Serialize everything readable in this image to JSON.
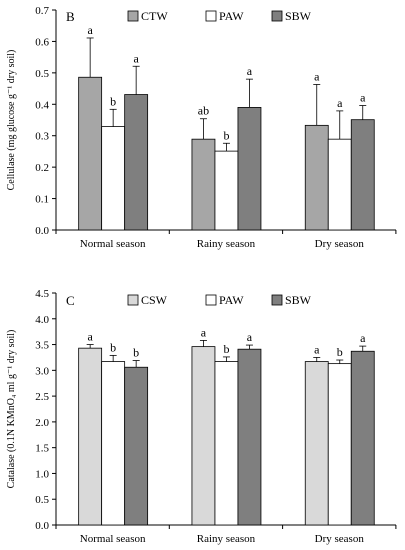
{
  "chart_data": [
    {
      "type": "bar",
      "panel_label": "B",
      "ylabel": "Cellulase (mg glucose g⁻¹ dry soil)",
      "ylim": [
        0,
        0.7
      ],
      "yticks": [
        "0.0",
        "0.1",
        "0.2",
        "0.3",
        "0.4",
        "0.5",
        "0.6",
        "0.7"
      ],
      "categories": [
        "Normal season",
        "Rainy season",
        "Dry season"
      ],
      "legend_position": "top",
      "grid": false,
      "series": [
        {
          "name": "CTW",
          "color": "#a6a6a6",
          "values": [
            0.486,
            0.289,
            0.333
          ],
          "errors": [
            0.125,
            0.065,
            0.13
          ],
          "labels": [
            "a",
            "ab",
            "a"
          ]
        },
        {
          "name": "PAW",
          "color": "#ffffff",
          "values": [
            0.329,
            0.251,
            0.289
          ],
          "errors": [
            0.055,
            0.025,
            0.09
          ],
          "labels": [
            "b",
            "b",
            "a"
          ]
        },
        {
          "name": "SBW",
          "color": "#7f7f7f",
          "values": [
            0.431,
            0.39,
            0.351
          ],
          "errors": [
            0.09,
            0.09,
            0.045
          ],
          "labels": [
            "a",
            "a",
            "a"
          ]
        }
      ]
    },
    {
      "type": "bar",
      "panel_label": "C",
      "ylabel": "Catalase (0.1N KMnO₄ ml g⁻¹ dry soil)",
      "ylim": [
        0,
        4.5
      ],
      "yticks": [
        "0.0",
        "0.5",
        "1.0",
        "1.5",
        "2.0",
        "2.5",
        "3.0",
        "3.5",
        "4.0",
        "4.5"
      ],
      "categories": [
        "Normal season",
        "Rainy season",
        "Dry season"
      ],
      "legend_position": "top",
      "grid": false,
      "series": [
        {
          "name": "CSW",
          "color": "#d9d9d9",
          "values": [
            3.43,
            3.46,
            3.17
          ],
          "errors": [
            0.07,
            0.12,
            0.08
          ],
          "labels": [
            "a",
            "a",
            "a"
          ]
        },
        {
          "name": "PAW",
          "color": "#ffffff",
          "values": [
            3.17,
            3.17,
            3.13
          ],
          "errors": [
            0.12,
            0.09,
            0.07
          ],
          "labels": [
            "b",
            "b",
            "b"
          ]
        },
        {
          "name": "SBW",
          "color": "#7f7f7f",
          "values": [
            3.06,
            3.41,
            3.37
          ],
          "errors": [
            0.13,
            0.08,
            0.1
          ],
          "labels": [
            "b",
            "a",
            "a"
          ]
        }
      ]
    }
  ]
}
